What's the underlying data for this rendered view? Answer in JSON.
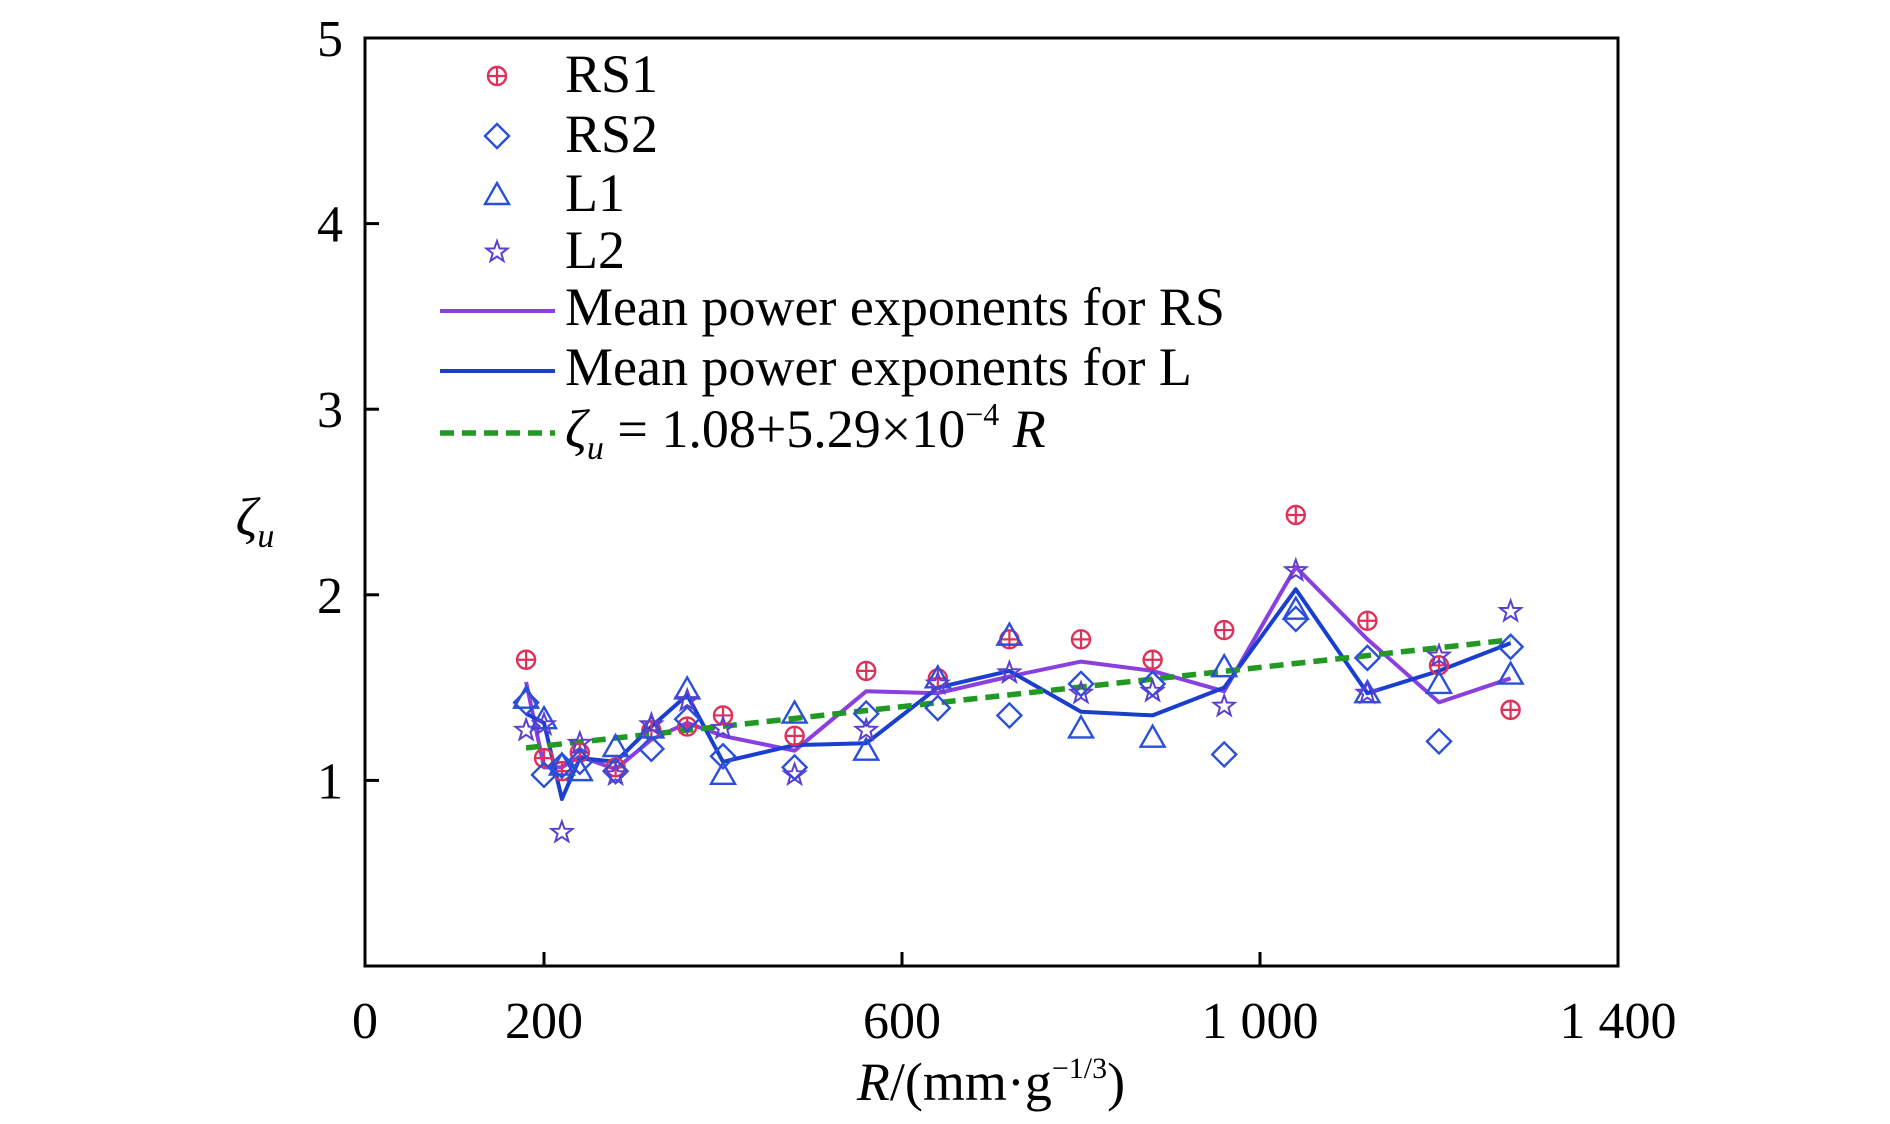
{
  "chart_data": {
    "type": "scatter",
    "xlabel": {
      "main": "R",
      "unit": "/(mm·g",
      "exp": "−1/3",
      "close": ")"
    },
    "ylabel": {
      "main": "ζ",
      "sub": "u"
    },
    "xlim": [
      0,
      1400
    ],
    "ylim": [
      0,
      5
    ],
    "x_ticks": [
      {
        "value": 0,
        "label": "0"
      },
      {
        "value": 200,
        "label": "200"
      },
      {
        "value": 600,
        "label": "600"
      },
      {
        "value": 1000,
        "label": "1 000"
      },
      {
        "value": 1400,
        "label": "1 400"
      }
    ],
    "y_ticks": [
      {
        "value": 1,
        "label": "1"
      },
      {
        "value": 2,
        "label": "2"
      },
      {
        "value": 3,
        "label": "3"
      },
      {
        "value": 4,
        "label": "4"
      },
      {
        "value": 5,
        "label": "5"
      }
    ],
    "legend_position": "top-left",
    "series": [
      {
        "name": "RS1",
        "marker": "circle-plus",
        "color": "#e0305a",
        "points": [
          [
            180,
            1.65
          ],
          [
            200,
            1.12
          ],
          [
            220,
            1.05
          ],
          [
            240,
            1.15
          ],
          [
            280,
            1.07
          ],
          [
            320,
            1.27
          ],
          [
            360,
            1.29
          ],
          [
            400,
            1.35
          ],
          [
            480,
            1.24
          ],
          [
            560,
            1.59
          ],
          [
            640,
            1.55
          ],
          [
            720,
            1.76
          ],
          [
            800,
            1.76
          ],
          [
            880,
            1.65
          ],
          [
            960,
            1.81
          ],
          [
            1040,
            2.43
          ],
          [
            1120,
            1.86
          ],
          [
            1200,
            1.62
          ],
          [
            1280,
            1.38
          ]
        ]
      },
      {
        "name": "RS2",
        "marker": "diamond",
        "color": "#2a4fd8",
        "points": [
          [
            180,
            1.42
          ],
          [
            200,
            1.03
          ],
          [
            220,
            1.08
          ],
          [
            240,
            1.1
          ],
          [
            280,
            1.05
          ],
          [
            320,
            1.17
          ],
          [
            360,
            1.33
          ],
          [
            400,
            1.13
          ],
          [
            480,
            1.07
          ],
          [
            560,
            1.36
          ],
          [
            640,
            1.39
          ],
          [
            720,
            1.35
          ],
          [
            800,
            1.52
          ],
          [
            880,
            1.52
          ],
          [
            960,
            1.14
          ],
          [
            1040,
            1.87
          ],
          [
            1120,
            1.66
          ],
          [
            1200,
            1.21
          ],
          [
            1280,
            1.72
          ]
        ]
      },
      {
        "name": "L1",
        "marker": "triangle",
        "color": "#2a4fd8",
        "points": [
          [
            180,
            1.44
          ],
          [
            200,
            1.33
          ],
          [
            220,
            1.08
          ],
          [
            240,
            1.05
          ],
          [
            280,
            1.18
          ],
          [
            320,
            1.28
          ],
          [
            360,
            1.49
          ],
          [
            400,
            1.03
          ],
          [
            480,
            1.36
          ],
          [
            560,
            1.16
          ],
          [
            640,
            1.55
          ],
          [
            720,
            1.78
          ],
          [
            800,
            1.28
          ],
          [
            880,
            1.23
          ],
          [
            960,
            1.61
          ],
          [
            1040,
            1.92
          ],
          [
            1120,
            1.47
          ],
          [
            1200,
            1.52
          ],
          [
            1280,
            1.57
          ]
        ]
      },
      {
        "name": "L2",
        "marker": "star",
        "color": "#5a3fd0",
        "points": [
          [
            180,
            1.27
          ],
          [
            200,
            1.3
          ],
          [
            220,
            0.72
          ],
          [
            240,
            1.2
          ],
          [
            280,
            1.03
          ],
          [
            320,
            1.3
          ],
          [
            360,
            1.43
          ],
          [
            400,
            1.28
          ],
          [
            480,
            1.03
          ],
          [
            560,
            1.27
          ],
          [
            640,
            1.52
          ],
          [
            720,
            1.58
          ],
          [
            800,
            1.47
          ],
          [
            880,
            1.48
          ],
          [
            960,
            1.4
          ],
          [
            1040,
            2.13
          ],
          [
            1120,
            1.47
          ],
          [
            1200,
            1.67
          ],
          [
            1280,
            1.91
          ]
        ]
      },
      {
        "name": "Mean power exponents for RS",
        "marker": "line",
        "color": "#8a3fe0",
        "points": [
          [
            180,
            1.53
          ],
          [
            200,
            1.07
          ],
          [
            220,
            1.07
          ],
          [
            240,
            1.13
          ],
          [
            280,
            1.06
          ],
          [
            320,
            1.22
          ],
          [
            360,
            1.31
          ],
          [
            400,
            1.24
          ],
          [
            480,
            1.16
          ],
          [
            560,
            1.48
          ],
          [
            640,
            1.47
          ],
          [
            720,
            1.56
          ],
          [
            800,
            1.64
          ],
          [
            880,
            1.59
          ],
          [
            960,
            1.48
          ],
          [
            1040,
            2.15
          ],
          [
            1120,
            1.76
          ],
          [
            1200,
            1.42
          ],
          [
            1280,
            1.55
          ]
        ]
      },
      {
        "name": "Mean power exponents for L",
        "marker": "line",
        "color": "#1a3fd0",
        "points": [
          [
            180,
            1.36
          ],
          [
            200,
            1.31
          ],
          [
            220,
            0.9
          ],
          [
            240,
            1.12
          ],
          [
            280,
            1.1
          ],
          [
            320,
            1.29
          ],
          [
            360,
            1.46
          ],
          [
            400,
            1.1
          ],
          [
            480,
            1.19
          ],
          [
            560,
            1.2
          ],
          [
            640,
            1.5
          ],
          [
            720,
            1.59
          ],
          [
            800,
            1.37
          ],
          [
            880,
            1.35
          ],
          [
            960,
            1.5
          ],
          [
            1040,
            2.03
          ],
          [
            1120,
            1.47
          ],
          [
            1200,
            1.59
          ],
          [
            1280,
            1.74
          ]
        ]
      },
      {
        "name_parts": {
          "var": "ζ",
          "sub": "u",
          "eq": " = 1.08+5.29×10",
          "exp": "−4",
          "tail": " R"
        },
        "marker": "dashed",
        "color": "#229922",
        "fit": {
          "intercept": 1.08,
          "slope": 0.000529,
          "x_range": [
            180,
            1280
          ]
        }
      }
    ]
  }
}
